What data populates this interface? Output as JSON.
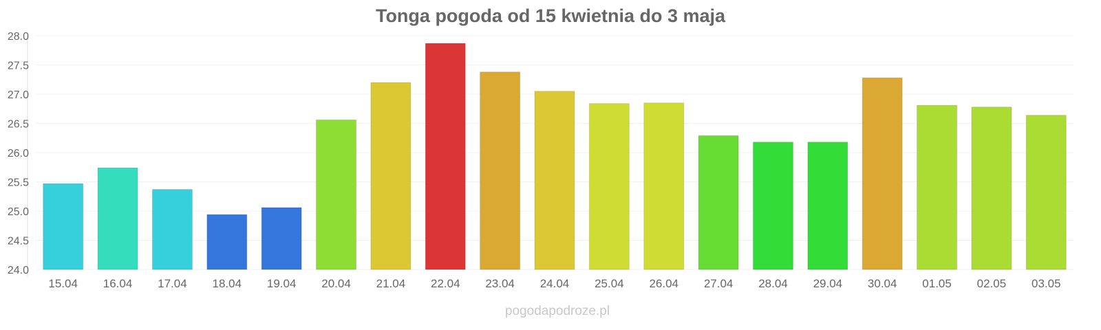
{
  "chart_data": {
    "type": "bar",
    "title": "Tonga pogoda od 15 kwietnia do 3 maja",
    "xlabel": "",
    "ylabel": "",
    "ylim": [
      24.0,
      28.0
    ],
    "yticks": [
      "24.0",
      "24.5",
      "25.0",
      "25.5",
      "26.0",
      "26.5",
      "27.0",
      "27.5",
      "28.0"
    ],
    "grid": true,
    "categories": [
      "15.04",
      "16.04",
      "17.04",
      "18.04",
      "19.04",
      "20.04",
      "21.04",
      "22.04",
      "23.04",
      "24.04",
      "25.04",
      "26.04",
      "27.04",
      "28.04",
      "29.04",
      "30.04",
      "01.05",
      "02.05",
      "03.05"
    ],
    "values": [
      25.47,
      25.74,
      25.37,
      24.94,
      25.06,
      26.56,
      27.2,
      27.87,
      27.38,
      27.05,
      26.84,
      26.85,
      26.29,
      26.18,
      26.18,
      27.28,
      26.81,
      26.78,
      26.64
    ],
    "colors": [
      "#36cfdc",
      "#33ddbd",
      "#36cfdc",
      "#3476db",
      "#3476db",
      "#8ddd34",
      "#dcc832",
      "#dc3535",
      "#dca834",
      "#dcc832",
      "#cfdc34",
      "#cfdc34",
      "#66dc34",
      "#33dc38",
      "#33dc38",
      "#dca834",
      "#aadc33",
      "#aadc33",
      "#aadc33"
    ]
  },
  "watermark": "pogodapodroze.pl"
}
